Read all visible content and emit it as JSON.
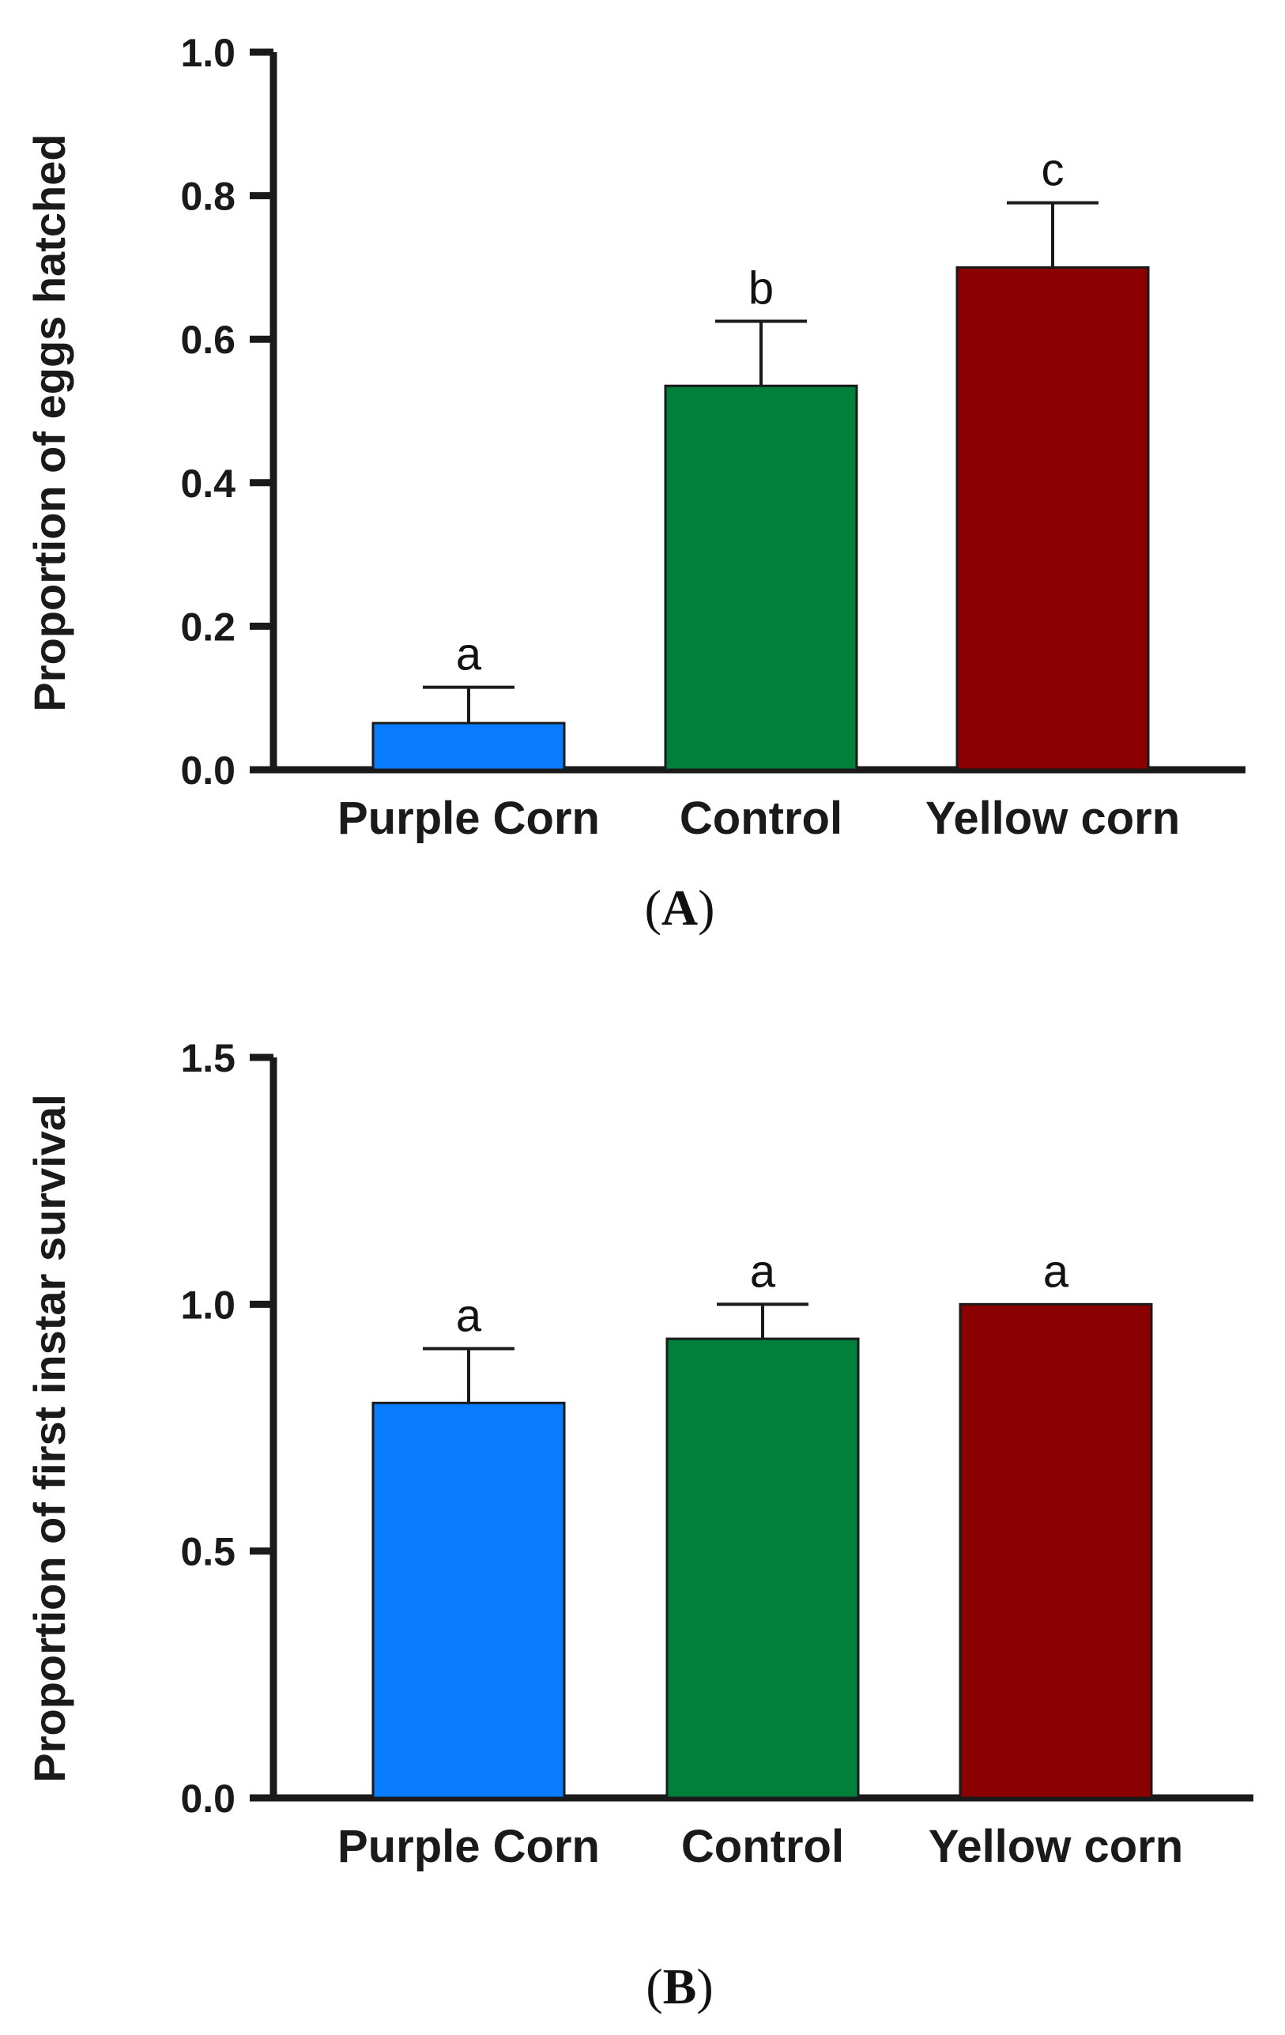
{
  "chart_data": [
    {
      "type": "bar",
      "panel": "A",
      "ylabel": "Proportion of eggs hatched",
      "xlabel": "",
      "ylim": [
        0,
        1.0
      ],
      "yticks": [
        "0.0",
        "0.2",
        "0.4",
        "0.6",
        "0.8",
        "1.0"
      ],
      "categories": [
        "Purple Corn",
        "Control",
        "Yellow corn"
      ],
      "values": [
        0.065,
        0.535,
        0.7
      ],
      "errors": [
        0.05,
        0.09,
        0.09
      ],
      "significance": [
        "a",
        "b",
        "c"
      ],
      "colors": [
        "#0a7cff",
        "#00803a",
        "#8b0000"
      ],
      "grid": false,
      "legend": "none"
    },
    {
      "type": "bar",
      "panel": "B",
      "ylabel": "Proportion of first instar survival",
      "xlabel": "",
      "ylim": [
        0,
        1.5
      ],
      "yticks": [
        "0.0",
        "0.5",
        "1.0",
        "1.5"
      ],
      "categories": [
        "Purple Corn",
        "Control",
        "Yellow corn"
      ],
      "values": [
        0.8,
        0.93,
        1.0
      ],
      "errors": [
        0.11,
        0.07,
        0.0
      ],
      "significance": [
        "a",
        "a",
        "a"
      ],
      "colors": [
        "#0a7cff",
        "#00803a",
        "#8b0000"
      ],
      "grid": false,
      "legend": "none"
    }
  ],
  "panels": {
    "A": {
      "open": "(",
      "letter": "A",
      "close": ")"
    },
    "B": {
      "open": "(",
      "letter": "B",
      "close": ")"
    }
  }
}
